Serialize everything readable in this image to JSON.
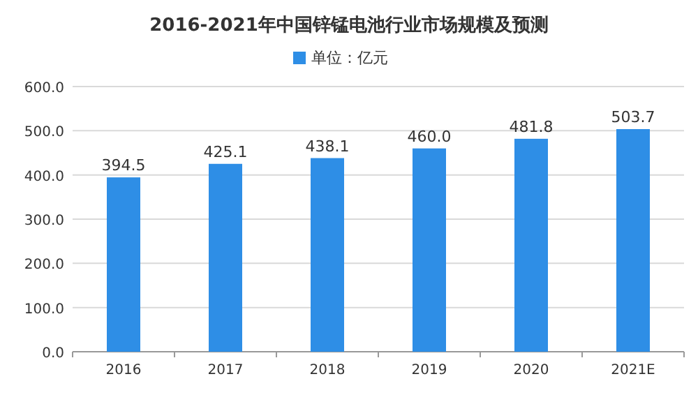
{
  "chart_data": {
    "type": "bar",
    "title": "2016-2021年中国锌锰电池行业市场规模及预测",
    "categories": [
      "2016",
      "2017",
      "2018",
      "2019",
      "2020",
      "2021E"
    ],
    "series": [
      {
        "name": "单位：亿元",
        "color": "#2e8ee6",
        "values": [
          394.5,
          425.1,
          438.1,
          460.0,
          481.8,
          503.7
        ],
        "value_labels": [
          "394.5",
          "425.1",
          "438.1",
          "460.0",
          "481.8",
          "503.7"
        ]
      }
    ],
    "ylim": [
      0,
      600
    ],
    "yticks": [
      {
        "value": 0,
        "label": "0.0"
      },
      {
        "value": 100,
        "label": "100.0"
      },
      {
        "value": 200,
        "label": "200.0"
      },
      {
        "value": 300,
        "label": "300.0"
      },
      {
        "value": 400,
        "label": "400.0"
      },
      {
        "value": 500,
        "label": "500.0"
      },
      {
        "value": 600,
        "label": "600.0"
      }
    ],
    "grid": "y",
    "legend": "top"
  }
}
